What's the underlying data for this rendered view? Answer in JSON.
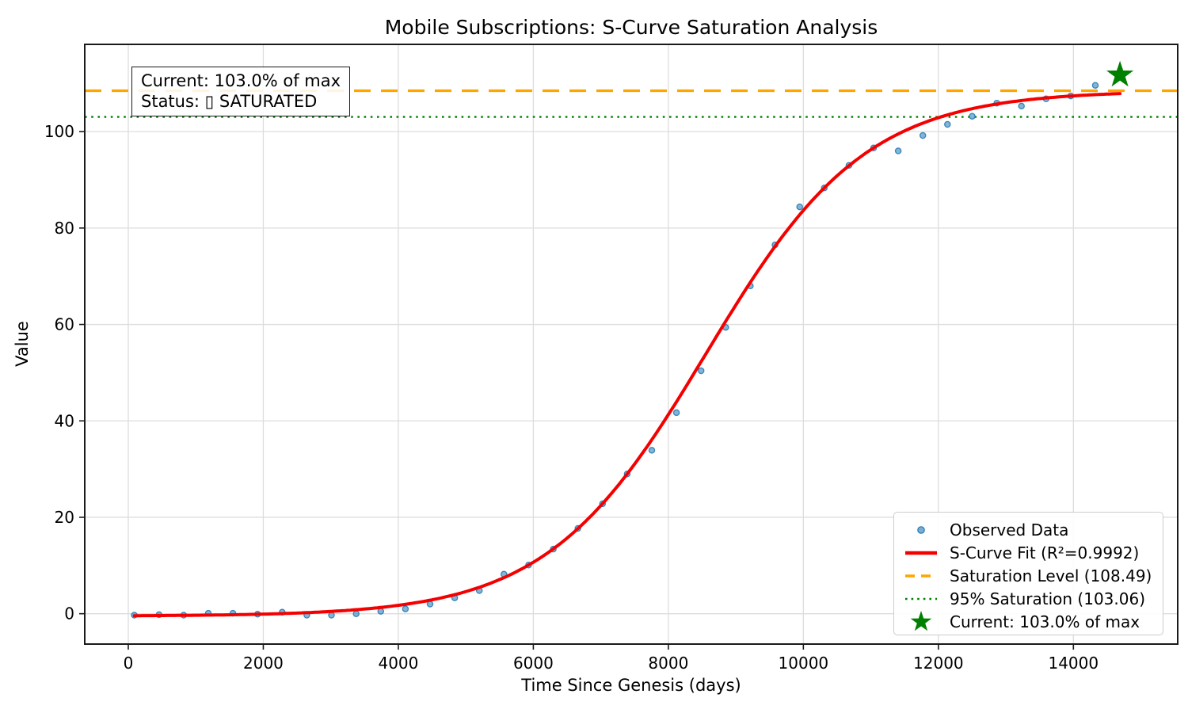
{
  "chart_data": {
    "type": "scatter",
    "title": "Mobile Subscriptions: S-Curve Saturation Analysis",
    "xlabel": "Time Since Genesis (days)",
    "ylabel": "Value",
    "xlim": [
      -645,
      15545
    ],
    "ylim": [
      -6.3,
      118.1
    ],
    "x_ticks": [
      0,
      2000,
      4000,
      6000,
      8000,
      10000,
      12000,
      14000
    ],
    "y_ticks": [
      0,
      20,
      40,
      60,
      80,
      100
    ],
    "grid": true,
    "legend_position": "lower right",
    "colors": {
      "observed": "#1f77b4",
      "fit": "#f40000",
      "saturation": "#ffa500",
      "p95": "#008000",
      "star": "#008000",
      "grid": "#dddddd",
      "spine": "#1a1a1a"
    },
    "series": {
      "observed": {
        "label": "Observed Data",
        "color": "#1f77b4",
        "points": [
          [
            90,
            -0.3
          ],
          [
            455,
            -0.2
          ],
          [
            820,
            -0.3
          ],
          [
            1185,
            0.1
          ],
          [
            1550,
            0.1
          ],
          [
            1915,
            -0.1
          ],
          [
            2280,
            0.3
          ],
          [
            2645,
            -0.3
          ],
          [
            3010,
            -0.3
          ],
          [
            3375,
            0.0
          ],
          [
            3740,
            0.5
          ],
          [
            4105,
            1.0
          ],
          [
            4470,
            2.0
          ],
          [
            4835,
            3.3
          ],
          [
            5200,
            4.8
          ],
          [
            5565,
            8.2
          ],
          [
            5930,
            10.1
          ],
          [
            6295,
            13.4
          ],
          [
            6660,
            17.7
          ],
          [
            7025,
            22.8
          ],
          [
            7390,
            29.0
          ],
          [
            7755,
            33.9
          ],
          [
            8120,
            41.7
          ],
          [
            8485,
            50.4
          ],
          [
            8850,
            59.4
          ],
          [
            9215,
            68.0
          ],
          [
            9580,
            76.5
          ],
          [
            9945,
            84.4
          ],
          [
            10310,
            88.3
          ],
          [
            10675,
            93.0
          ],
          [
            11040,
            96.6
          ],
          [
            11405,
            96.0
          ],
          [
            11770,
            99.2
          ],
          [
            12135,
            101.5
          ],
          [
            12500,
            103.2
          ],
          [
            12865,
            105.9
          ],
          [
            13230,
            105.3
          ],
          [
            13595,
            106.8
          ],
          [
            13960,
            107.4
          ],
          [
            14325,
            109.6
          ],
          [
            14690,
            111.7
          ]
        ]
      },
      "fit": {
        "label": "S-Curve Fit (R²=0.9992)",
        "color": "#f40000",
        "r_squared": 0.9992,
        "logistic": {
          "offset": -0.5,
          "L": 108.99,
          "x0": 8560,
          "tau": 1180
        },
        "x_range": [
          90,
          14690
        ]
      },
      "saturation": {
        "label": "Saturation Level (108.49)",
        "value": 108.49,
        "color": "#ffa500",
        "style": "dashed"
      },
      "p95": {
        "label": "95% Saturation (103.06)",
        "value": 103.06,
        "color": "#008000",
        "style": "dotted"
      },
      "current": {
        "label": "Current: 103.0% of max",
        "x": 14690,
        "y": 111.74,
        "pct_of_max": 103.0,
        "color": "#008000",
        "marker": "star"
      }
    },
    "legend": [
      {
        "type": "dot",
        "color": "#1f77b4",
        "label": "Observed Data"
      },
      {
        "type": "line",
        "color": "#f40000",
        "label": "S-Curve Fit (R²=0.9992)"
      },
      {
        "type": "dashed",
        "color": "#ffa500",
        "label": "Saturation Level (108.49)"
      },
      {
        "type": "dotted",
        "color": "#008000",
        "label": "95% Saturation (103.06)"
      },
      {
        "type": "star",
        "color": "#008000",
        "label": "Current: 103.0% of max"
      }
    ],
    "annotation": {
      "line1": "Current: 103.0% of max",
      "line2": "Status: ▯ SATURATED"
    }
  }
}
